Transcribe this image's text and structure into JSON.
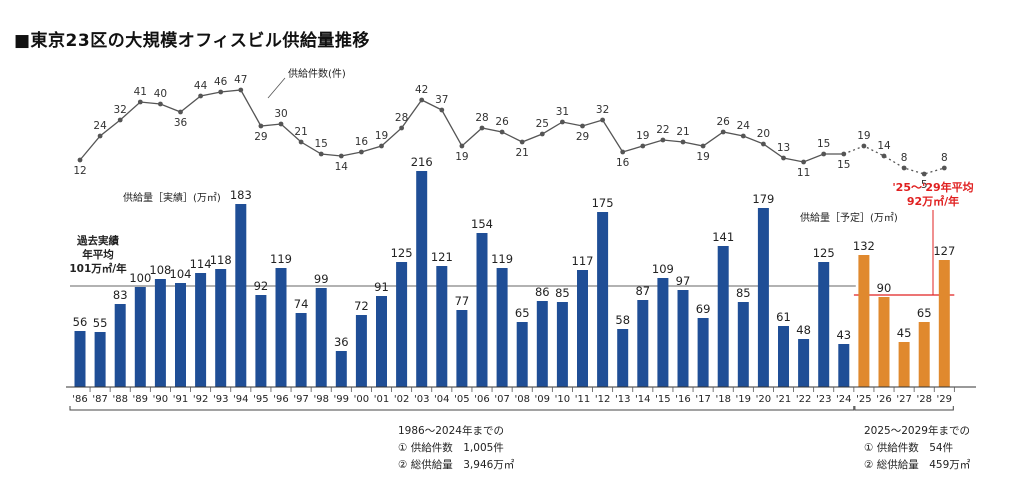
{
  "title": "■東京23区の大規模オフィスビル供給量推移",
  "chart_data": {
    "type": "bar",
    "categories": [
      "'86",
      "'87",
      "'88",
      "'89",
      "'90",
      "'91",
      "'92",
      "'93",
      "'94",
      "'95",
      "'96",
      "'97",
      "'98",
      "'99",
      "'00",
      "'01",
      "'02",
      "'03",
      "'04",
      "'05",
      "'06",
      "'07",
      "'08",
      "'09",
      "'10",
      "'11",
      "'12",
      "'13",
      "'14",
      "'15",
      "'16",
      "'17",
      "'18",
      "'19",
      "'20",
      "'21",
      "'22",
      "'23",
      "'24",
      "'25",
      "'26",
      "'27",
      "'28",
      "'29"
    ],
    "series": [
      {
        "name": "供給量［実績］（万㎡）",
        "color": "#1f4e96",
        "values": [
          56,
          55,
          83,
          100,
          108,
          104,
          114,
          118,
          183,
          92,
          119,
          74,
          99,
          36,
          72,
          91,
          125,
          216,
          121,
          77,
          154,
          119,
          65,
          86,
          85,
          117,
          175,
          58,
          87,
          109,
          97,
          69,
          141,
          85,
          179,
          61,
          48,
          125,
          43,
          null,
          null,
          null,
          null,
          null
        ]
      },
      {
        "name": "供給量［予定］（万㎡）",
        "color": "#e0892e",
        "values": [
          null,
          null,
          null,
          null,
          null,
          null,
          null,
          null,
          null,
          null,
          null,
          null,
          null,
          null,
          null,
          null,
          null,
          null,
          null,
          null,
          null,
          null,
          null,
          null,
          null,
          null,
          null,
          null,
          null,
          null,
          null,
          null,
          null,
          null,
          null,
          null,
          null,
          null,
          null,
          132,
          90,
          45,
          65,
          127
        ]
      },
      {
        "name": "供給件数（件）",
        "type": "line",
        "color": "#555555",
        "values": [
          12,
          24,
          32,
          41,
          40,
          36,
          44,
          46,
          47,
          29,
          30,
          21,
          15,
          14,
          16,
          19,
          28,
          42,
          37,
          19,
          28,
          26,
          21,
          25,
          31,
          29,
          32,
          16,
          19,
          22,
          21,
          19,
          26,
          24,
          20,
          13,
          11,
          15,
          15,
          19,
          14,
          8,
          5,
          8
        ],
        "dashed_from_index": 39
      }
    ],
    "reference_lines": [
      {
        "label": "過去実績 年平均 101万㎡/年",
        "value": 101,
        "color": "#555555",
        "range": "'86-'24"
      },
      {
        "label": "'25～'29年平均 92万㎡/年",
        "value": 92,
        "color": "#e02020",
        "range": "'25-'29"
      }
    ],
    "ylim": [
      0,
      230
    ]
  },
  "labels": {
    "count_legend": "供給件数(件)",
    "actual_legend": "供給量［実績］(万㎡)",
    "plan_legend": "供給量［予定］(万㎡)",
    "past_avg_line1": "過去実績",
    "past_avg_line2": "年平均",
    "past_avg_line3": "101万㎡/年",
    "future_avg_line1": "'25～'29年平均",
    "future_avg_line2": "92万㎡/年"
  },
  "summary_past": {
    "heading": "1986～2024年までの",
    "line1": "① 供給件数　1,005件",
    "line2": "② 総供給量　3,946万㎡"
  },
  "summary_future": {
    "heading": "2025～2029年までの",
    "line1": "① 供給件数　54件",
    "line2": "② 総供給量　459万㎡"
  }
}
